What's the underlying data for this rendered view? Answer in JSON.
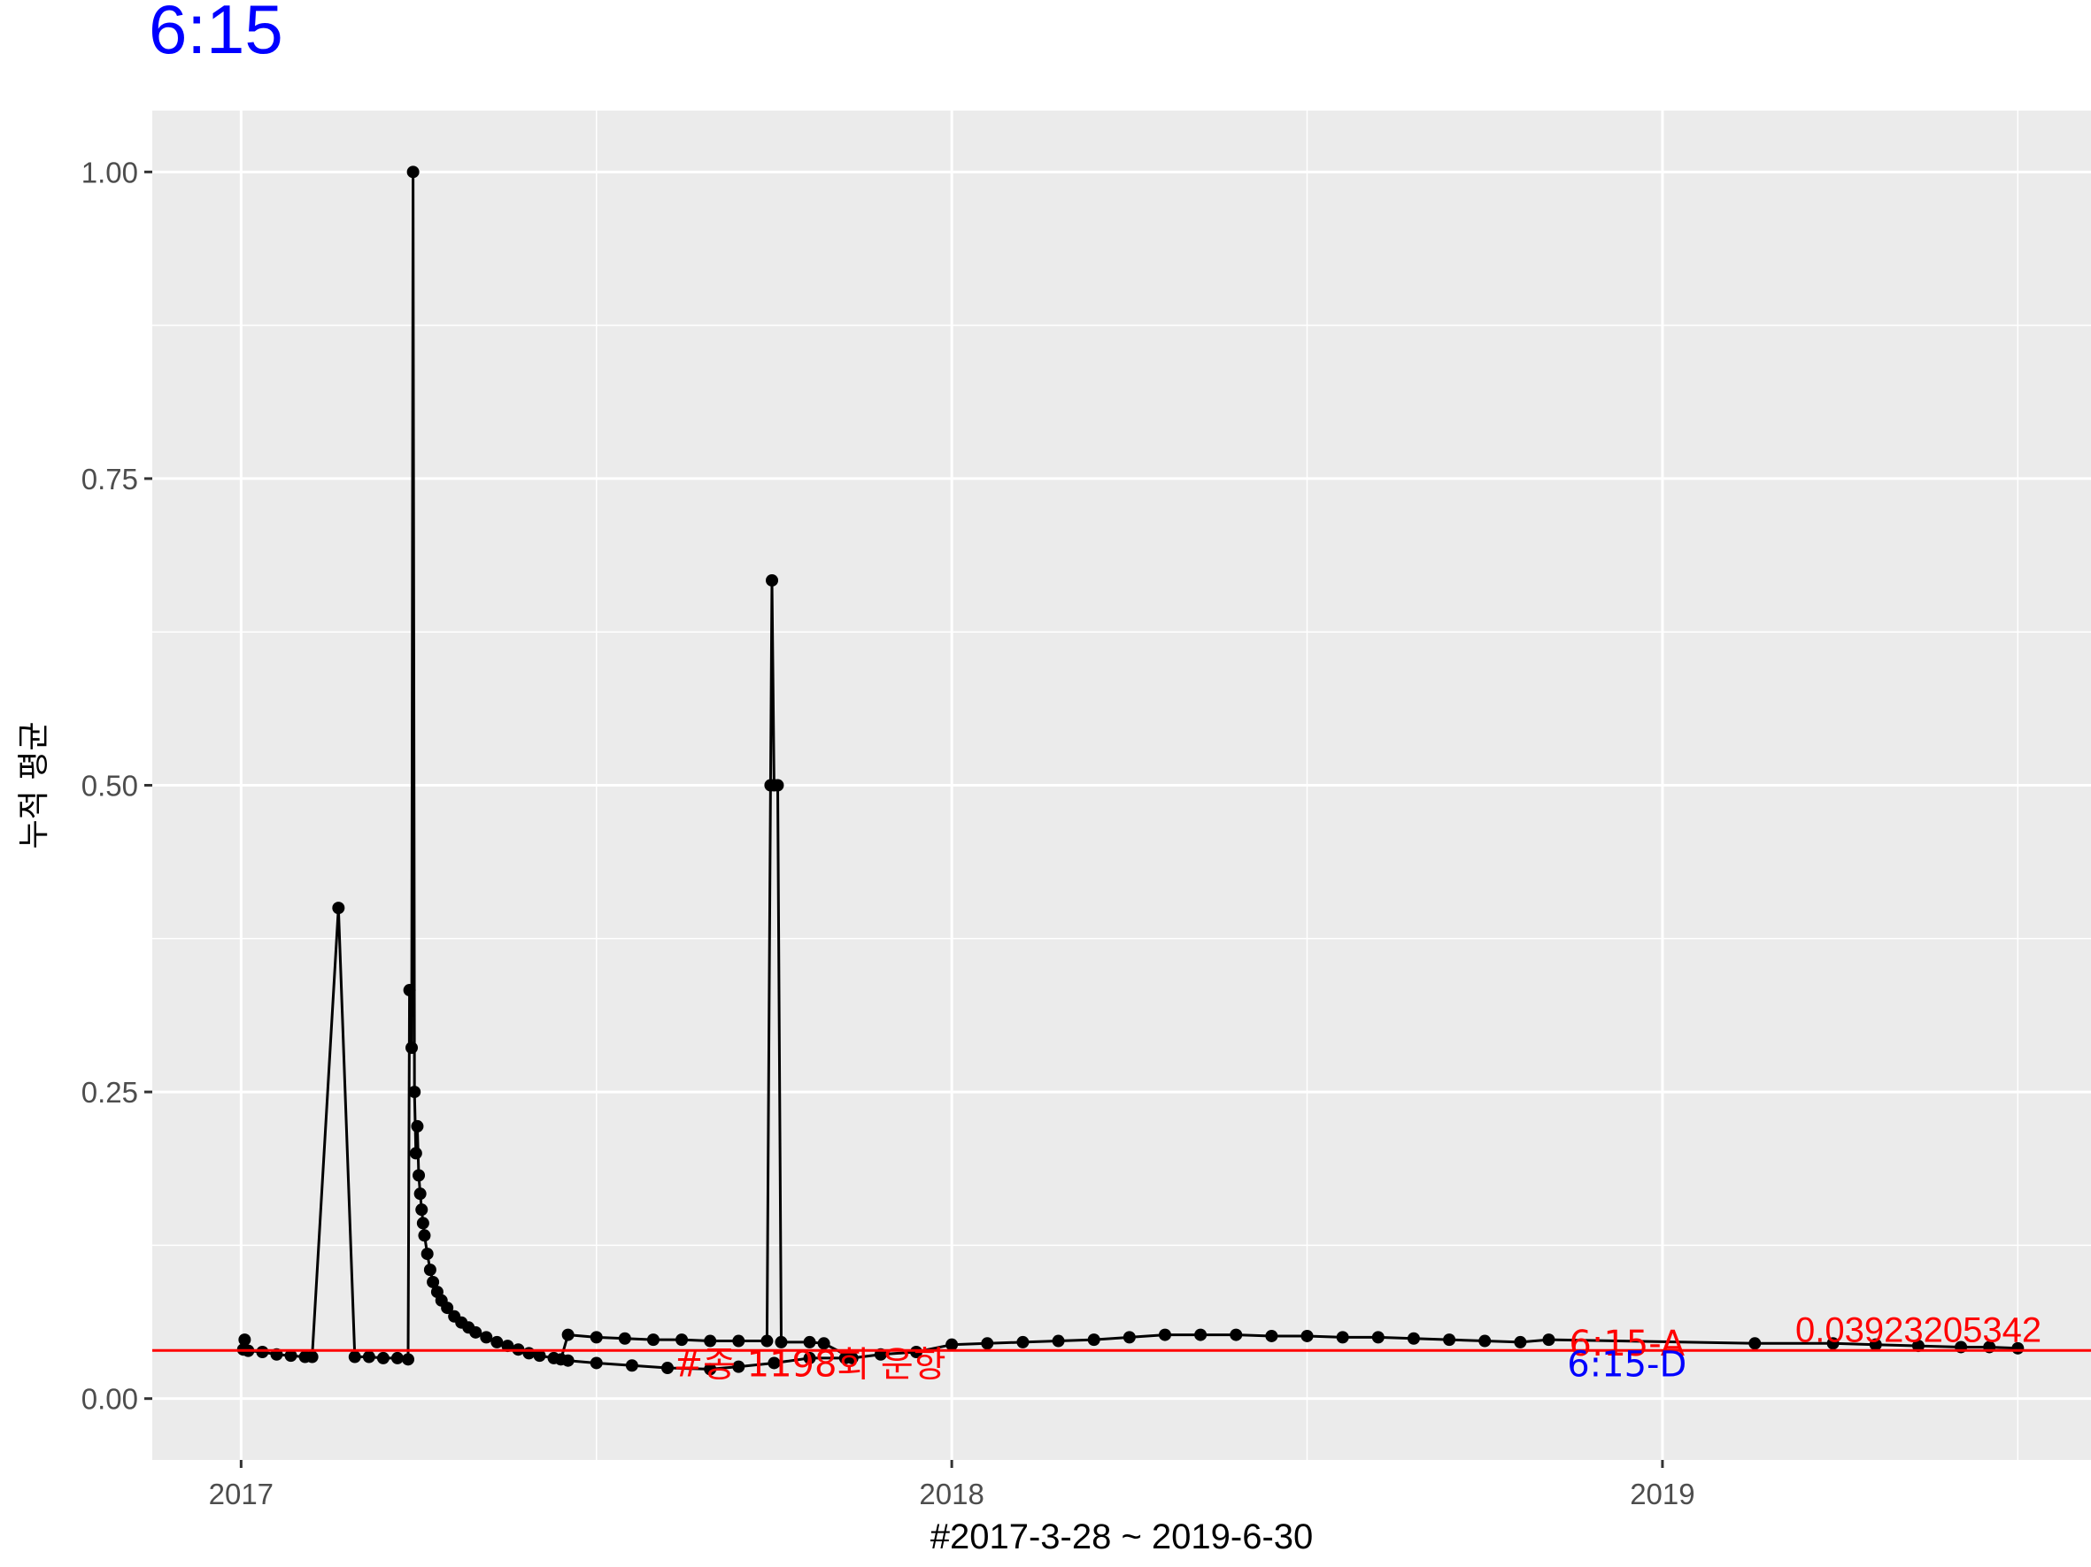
{
  "chart_data": {
    "type": "line",
    "title": "6:15",
    "title_color": "#0000ff",
    "xlabel": "#2017-3-28 ~ 2019-6-30",
    "ylabel": "누적 평균",
    "xlim": [
      2016.875,
      2019.603
    ],
    "ylim": [
      -0.05,
      1.05
    ],
    "x_ticks": [
      {
        "value": 2017,
        "label": "2017"
      },
      {
        "value": 2018,
        "label": "2018"
      },
      {
        "value": 2019,
        "label": "2019"
      }
    ],
    "y_ticks": [
      {
        "value": 0.0,
        "label": "0.00"
      },
      {
        "value": 0.25,
        "label": "0.25"
      },
      {
        "value": 0.5,
        "label": "0.50"
      },
      {
        "value": 0.75,
        "label": "0.75"
      },
      {
        "value": 1.0,
        "label": "1.00"
      }
    ],
    "grid": true,
    "panel_color": "#ebebeb",
    "series": [
      {
        "name": "누적 평균",
        "color": "#000000",
        "points": [
          [
            2017.003,
            0.04
          ],
          [
            2017.005,
            0.048
          ],
          [
            2017.01,
            0.039
          ],
          [
            2017.03,
            0.038
          ],
          [
            2017.05,
            0.036
          ],
          [
            2017.07,
            0.035
          ],
          [
            2017.09,
            0.034
          ],
          [
            2017.1,
            0.034
          ],
          [
            2017.137,
            0.4
          ],
          [
            2017.16,
            0.034
          ],
          [
            2017.18,
            0.034
          ],
          [
            2017.2,
            0.033
          ],
          [
            2017.22,
            0.033
          ],
          [
            2017.235,
            0.032
          ],
          [
            2017.237,
            0.333
          ],
          [
            2017.24,
            0.286
          ],
          [
            2017.242,
            1.0
          ],
          [
            2017.244,
            0.25
          ],
          [
            2017.246,
            0.2
          ],
          [
            2017.248,
            0.222
          ],
          [
            2017.25,
            0.182
          ],
          [
            2017.252,
            0.167
          ],
          [
            2017.254,
            0.154
          ],
          [
            2017.256,
            0.143
          ],
          [
            2017.258,
            0.133
          ],
          [
            2017.262,
            0.118
          ],
          [
            2017.266,
            0.105
          ],
          [
            2017.27,
            0.095
          ],
          [
            2017.276,
            0.087
          ],
          [
            2017.282,
            0.08
          ],
          [
            2017.29,
            0.074
          ],
          [
            2017.3,
            0.067
          ],
          [
            2017.31,
            0.062
          ],
          [
            2017.32,
            0.058
          ],
          [
            2017.33,
            0.054
          ],
          [
            2017.345,
            0.05
          ],
          [
            2017.36,
            0.046
          ],
          [
            2017.375,
            0.043
          ],
          [
            2017.39,
            0.04
          ],
          [
            2017.405,
            0.037
          ],
          [
            2017.42,
            0.035
          ],
          [
            2017.44,
            0.033
          ],
          [
            2017.45,
            0.032
          ],
          [
            2017.46,
            0.052
          ],
          [
            2017.5,
            0.05
          ],
          [
            2017.54,
            0.049
          ],
          [
            2017.58,
            0.048
          ],
          [
            2017.62,
            0.048
          ],
          [
            2017.66,
            0.047
          ],
          [
            2017.7,
            0.047
          ],
          [
            2017.74,
            0.047
          ],
          [
            2017.745,
            0.5
          ],
          [
            2017.747,
            0.667
          ],
          [
            2017.75,
            0.5
          ],
          [
            2017.755,
            0.5
          ],
          [
            2017.76,
            0.046
          ],
          [
            2017.8,
            0.046
          ],
          [
            2017.82,
            0.045
          ],
          [
            2017.86,
            0.033
          ],
          [
            2017.9,
            0.036
          ],
          [
            2017.95,
            0.038
          ],
          [
            2018.0,
            0.044
          ],
          [
            2018.05,
            0.045
          ],
          [
            2018.1,
            0.046
          ],
          [
            2018.15,
            0.047
          ],
          [
            2018.2,
            0.048
          ],
          [
            2018.25,
            0.05
          ],
          [
            2018.3,
            0.052
          ],
          [
            2018.35,
            0.052
          ],
          [
            2018.4,
            0.052
          ],
          [
            2018.45,
            0.051
          ],
          [
            2018.5,
            0.051
          ],
          [
            2018.55,
            0.05
          ],
          [
            2018.6,
            0.05
          ],
          [
            2018.65,
            0.049
          ],
          [
            2018.7,
            0.048
          ],
          [
            2018.75,
            0.047
          ],
          [
            2018.8,
            0.046
          ],
          [
            2018.84,
            0.048
          ],
          [
            2019.13,
            0.045
          ],
          [
            2019.24,
            0.045
          ],
          [
            2019.3,
            0.044
          ],
          [
            2019.36,
            0.043
          ],
          [
            2019.42,
            0.042
          ],
          [
            2019.46,
            0.042
          ],
          [
            2019.5,
            0.041
          ]
        ],
        "lower_band": [
          [
            2017.46,
            0.031
          ],
          [
            2017.5,
            0.029
          ],
          [
            2017.55,
            0.027
          ],
          [
            2017.6,
            0.025
          ],
          [
            2017.66,
            0.024
          ],
          [
            2017.7,
            0.026
          ],
          [
            2017.75,
            0.029
          ],
          [
            2017.8,
            0.033
          ],
          [
            2017.85,
            0.033
          ]
        ]
      }
    ],
    "hline": {
      "value": 0.03923205342,
      "color": "#ff0000",
      "label": "0.03923205342"
    },
    "annotations": [
      {
        "text": "#종 1198회 운항",
        "x": 2017.8,
        "y": 0.018,
        "color": "#ff0000"
      },
      {
        "text": "6:15-A",
        "x": 2018.95,
        "y": 0.035,
        "color": "#ff0000"
      },
      {
        "text": "6:15-D",
        "x": 2018.95,
        "y": 0.018,
        "color": "#0000ff"
      }
    ]
  }
}
